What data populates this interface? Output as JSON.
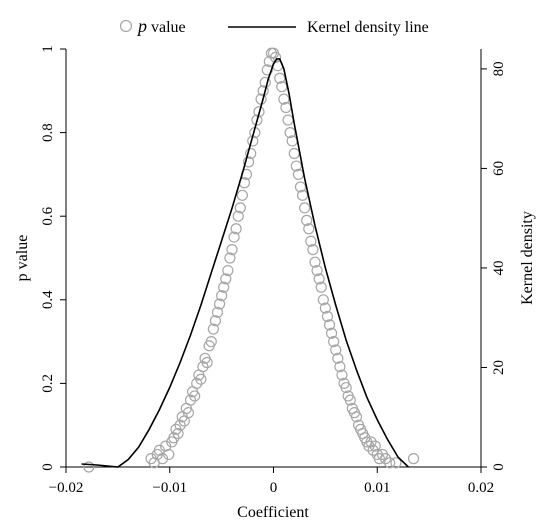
{
  "chart_data": {
    "type": "scatter",
    "xlabel": "Coefficient",
    "ylabel": "p value",
    "y2label": "Kernel density",
    "xlim": [
      -0.02,
      0.02
    ],
    "ylim": [
      0,
      1
    ],
    "y2lim": [
      0,
      84
    ],
    "x_ticks": [
      "−0.02",
      "−0.01",
      "0",
      "0.01",
      "0.02"
    ],
    "x_tick_values": [
      -0.02,
      -0.01,
      0,
      0.01,
      0.02
    ],
    "y_ticks": [
      "0",
      "0.2",
      "0.4",
      "0.6",
      "0.8",
      "1"
    ],
    "y_tick_values": [
      0,
      0.2,
      0.4,
      0.6,
      0.8,
      1
    ],
    "y2_ticks": [
      "0",
      "20",
      "40",
      "60",
      "80"
    ],
    "y2_tick_values": [
      0,
      20,
      40,
      60,
      80
    ],
    "legend": {
      "position": "top",
      "items": [
        {
          "marker": "circle",
          "prefix": "p",
          "text": " value"
        },
        {
          "marker": "line",
          "text": "Kernel density line"
        }
      ]
    },
    "colors": {
      "points": "#a6a6a6",
      "line": "#000000"
    },
    "series": [
      {
        "name": "p value",
        "kind": "scatter",
        "axis": "left",
        "x": [
          -0.0178,
          -0.0118,
          -0.0115,
          -0.0112,
          -0.011,
          -0.0107,
          -0.0104,
          -0.0101,
          -0.0098,
          -0.0096,
          -0.0094,
          -0.0092,
          -0.009,
          -0.0088,
          -0.0086,
          -0.0084,
          -0.0082,
          -0.008,
          -0.0078,
          -0.0076,
          -0.0074,
          -0.0072,
          -0.007,
          -0.0068,
          -0.0066,
          -0.0064,
          -0.0062,
          -0.006,
          -0.0058,
          -0.0056,
          -0.0054,
          -0.0052,
          -0.005,
          -0.0048,
          -0.0046,
          -0.0044,
          -0.0042,
          -0.004,
          -0.0038,
          -0.0036,
          -0.0034,
          -0.0032,
          -0.003,
          -0.0028,
          -0.0026,
          -0.0024,
          -0.0022,
          -0.002,
          -0.0018,
          -0.0016,
          -0.0014,
          -0.0012,
          -0.001,
          -0.0008,
          -0.0006,
          -0.0004,
          -0.0002,
          0.0,
          0.0002,
          0.0004,
          0.0006,
          0.0008,
          0.001,
          0.0012,
          0.0014,
          0.0016,
          0.0018,
          0.002,
          0.0022,
          0.0024,
          0.0026,
          0.0028,
          0.003,
          0.0032,
          0.0034,
          0.0036,
          0.0038,
          0.004,
          0.0042,
          0.0044,
          0.0046,
          0.0048,
          0.005,
          0.0052,
          0.0054,
          0.0056,
          0.0058,
          0.006,
          0.0062,
          0.0064,
          0.0066,
          0.0068,
          0.007,
          0.0072,
          0.0074,
          0.0076,
          0.0078,
          0.008,
          0.0082,
          0.0084,
          0.0086,
          0.0088,
          0.009,
          0.0092,
          0.0094,
          0.0096,
          0.0098,
          0.01,
          0.0102,
          0.0105,
          0.0108,
          0.0112,
          0.0118,
          0.0135
        ],
        "y": [
          0.0,
          0.02,
          0.01,
          0.03,
          0.04,
          0.02,
          0.05,
          0.03,
          0.06,
          0.07,
          0.09,
          0.08,
          0.1,
          0.12,
          0.11,
          0.14,
          0.13,
          0.16,
          0.18,
          0.17,
          0.2,
          0.22,
          0.21,
          0.24,
          0.26,
          0.25,
          0.29,
          0.3,
          0.33,
          0.35,
          0.37,
          0.39,
          0.41,
          0.43,
          0.45,
          0.47,
          0.5,
          0.52,
          0.55,
          0.57,
          0.6,
          0.62,
          0.65,
          0.68,
          0.7,
          0.73,
          0.75,
          0.78,
          0.8,
          0.83,
          0.85,
          0.88,
          0.9,
          0.92,
          0.95,
          0.97,
          0.99,
          0.99,
          0.98,
          0.96,
          0.93,
          0.91,
          0.88,
          0.86,
          0.83,
          0.8,
          0.78,
          0.75,
          0.72,
          0.7,
          0.67,
          0.65,
          0.62,
          0.59,
          0.57,
          0.54,
          0.52,
          0.49,
          0.47,
          0.45,
          0.43,
          0.4,
          0.38,
          0.36,
          0.34,
          0.32,
          0.3,
          0.28,
          0.26,
          0.24,
          0.22,
          0.2,
          0.19,
          0.17,
          0.16,
          0.14,
          0.13,
          0.12,
          0.1,
          0.09,
          0.08,
          0.07,
          0.06,
          0.05,
          0.06,
          0.04,
          0.05,
          0.03,
          0.02,
          0.03,
          0.02,
          0.01,
          0.01,
          0.02
        ]
      },
      {
        "name": "Kernel density line",
        "kind": "line",
        "axis": "right",
        "x": [
          -0.0185,
          -0.017,
          -0.015,
          -0.014,
          -0.013,
          -0.012,
          -0.011,
          -0.01,
          -0.009,
          -0.008,
          -0.007,
          -0.006,
          -0.005,
          -0.004,
          -0.003,
          -0.002,
          -0.001,
          -0.0005,
          0.0,
          0.0003,
          0.0006,
          0.001,
          0.0015,
          0.002,
          0.003,
          0.004,
          0.005,
          0.006,
          0.007,
          0.008,
          0.009,
          0.01,
          0.011,
          0.012,
          0.013
        ],
        "y": [
          0.6,
          0.4,
          0.0,
          1.5,
          4.0,
          7.5,
          11.5,
          16.0,
          21.0,
          26.5,
          32.5,
          39.0,
          45.5,
          52.0,
          59.0,
          66.5,
          74.0,
          78.0,
          81.0,
          82.0,
          82.0,
          80.0,
          75.0,
          69.0,
          58.0,
          48.5,
          40.0,
          32.5,
          25.5,
          19.5,
          14.0,
          9.5,
          5.5,
          2.0,
          0.0
        ]
      }
    ]
  }
}
